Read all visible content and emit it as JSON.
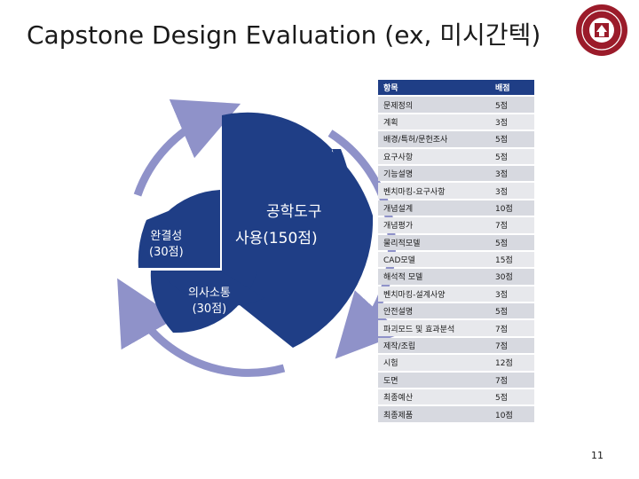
{
  "slide": {
    "title": "Capstone Design Evaluation (ex, 미시간텍)",
    "page_number": "11"
  },
  "diagram": {
    "main_label_line1": "공학도구",
    "main_label_line2": "사용(150점)",
    "left_label_line1": "완결성",
    "left_label_line2": "(30점)",
    "bottom_label_line1": "의사소통",
    "bottom_label_line2": "(30점)",
    "colors": {
      "segment": "#1f3e86",
      "ring": "#8f92c9"
    }
  },
  "table": {
    "header": {
      "item": "항목",
      "score": "배점"
    },
    "rows": [
      {
        "item": "문제정의",
        "score": "5점"
      },
      {
        "item": "계획",
        "score": "3점"
      },
      {
        "item": "배경/특허/문헌조사",
        "score": "5점"
      },
      {
        "item": "요구사항",
        "score": "5점"
      },
      {
        "item": "기능설명",
        "score": "3점"
      },
      {
        "item": "벤치마킹-요구사항",
        "score": "3점"
      },
      {
        "item": "개념설계",
        "score": "10점"
      },
      {
        "item": "개념평가",
        "score": "7점"
      },
      {
        "item": "물리적모델",
        "score": "5점"
      },
      {
        "item": "CAD모델",
        "score": "15점"
      },
      {
        "item": "해석적 모델",
        "score": "30점"
      },
      {
        "item": "벤치마킹-설계사양",
        "score": "3점"
      },
      {
        "item": "안전설명",
        "score": "5점"
      },
      {
        "item": "파괴모드 및 효과분석",
        "score": "7점"
      },
      {
        "item": "제작/조립",
        "score": "7점"
      },
      {
        "item": "시험",
        "score": "12점"
      },
      {
        "item": "도면",
        "score": "7점"
      },
      {
        "item": "최종예산",
        "score": "5점"
      },
      {
        "item": "최종제품",
        "score": "10점"
      }
    ]
  }
}
